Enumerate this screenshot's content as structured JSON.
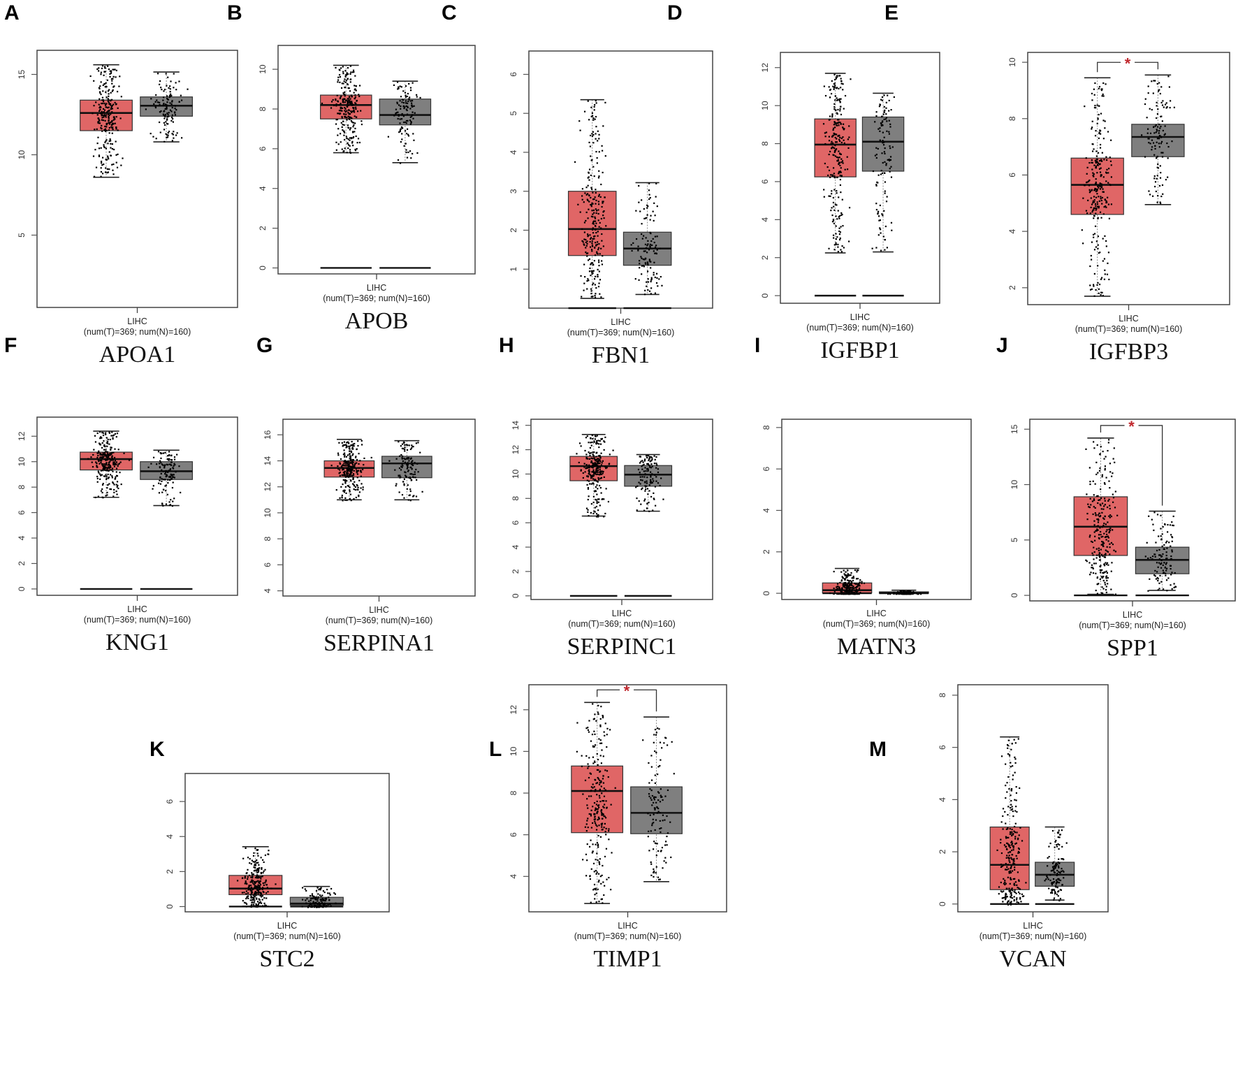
{
  "figure": {
    "panel_letters": [
      "A",
      "B",
      "C",
      "D",
      "E",
      "F",
      "G",
      "H",
      "I",
      "J",
      "K",
      "L",
      "M"
    ]
  },
  "chart_data": [
    {
      "panel": "A",
      "type": "box",
      "title": "APOA1",
      "xlabel": "LIHC",
      "subxlabel": "(num(T)=369; num(N)=160)",
      "yticks": [
        5,
        10,
        15
      ],
      "ylim": [
        0.5,
        16.5
      ],
      "series": [
        {
          "name": "Tumor",
          "color": "#E06666",
          "q1": 11.5,
          "median": 12.6,
          "q3": 13.4,
          "whisker_low": 8.6,
          "whisker_high": 15.6,
          "zero_line": false
        },
        {
          "name": "Normal",
          "color": "#7F7F7F",
          "q1": 12.4,
          "median": 13.05,
          "q3": 13.6,
          "whisker_low": 10.8,
          "whisker_high": 15.15,
          "zero_line": false
        }
      ],
      "significant": false
    },
    {
      "panel": "B",
      "type": "box",
      "title": "APOB",
      "xlabel": "LIHC",
      "subxlabel": "(num(T)=369; num(N)=160)",
      "yticks": [
        0,
        2,
        4,
        6,
        8,
        10
      ],
      "ylim": [
        -0.3,
        11.2
      ],
      "series": [
        {
          "name": "Tumor",
          "color": "#E06666",
          "q1": 7.5,
          "median": 8.2,
          "q3": 8.7,
          "whisker_low": 5.8,
          "whisker_high": 10.2,
          "zero_line": true
        },
        {
          "name": "Normal",
          "color": "#7F7F7F",
          "q1": 7.2,
          "median": 7.7,
          "q3": 8.5,
          "whisker_low": 5.3,
          "whisker_high": 9.4,
          "zero_line": true
        }
      ],
      "significant": false
    },
    {
      "panel": "C",
      "type": "box",
      "title": "FBN1",
      "xlabel": "LIHC",
      "subxlabel": "(num(T)=369; num(N)=160)",
      "yticks": [
        1,
        2,
        3,
        4,
        5,
        6
      ],
      "ylim": [
        0,
        6.6
      ],
      "series": [
        {
          "name": "Tumor",
          "color": "#E06666",
          "q1": 1.35,
          "median": 2.03,
          "q3": 3.0,
          "whisker_low": 0.25,
          "whisker_high": 5.35,
          "zero_line": true
        },
        {
          "name": "Normal",
          "color": "#7F7F7F",
          "q1": 1.1,
          "median": 1.53,
          "q3": 1.95,
          "whisker_low": 0.35,
          "whisker_high": 3.22,
          "zero_line": true
        }
      ],
      "significant": false
    },
    {
      "panel": "D",
      "type": "box",
      "title": "IGFBP1",
      "xlabel": "LIHC",
      "subxlabel": "(num(T)=369; num(N)=160)",
      "yticks": [
        0,
        2,
        4,
        6,
        8,
        10,
        12
      ],
      "ylim": [
        -0.4,
        12.8
      ],
      "series": [
        {
          "name": "Tumor",
          "color": "#E06666",
          "q1": 6.25,
          "median": 7.95,
          "q3": 9.3,
          "whisker_low": 2.25,
          "whisker_high": 11.7,
          "zero_line": true
        },
        {
          "name": "Normal",
          "color": "#7F7F7F",
          "q1": 6.55,
          "median": 8.1,
          "q3": 9.4,
          "whisker_low": 2.3,
          "whisker_high": 10.65,
          "zero_line": true
        }
      ],
      "significant": false
    },
    {
      "panel": "E",
      "type": "box",
      "title": "IGFBP3",
      "xlabel": "LIHC",
      "subxlabel": "(num(T)=369; num(N)=160)",
      "yticks": [
        2,
        4,
        6,
        8,
        10
      ],
      "ylim": [
        1.4,
        10.35
      ],
      "series": [
        {
          "name": "Tumor",
          "color": "#E06666",
          "q1": 4.6,
          "median": 5.65,
          "q3": 6.6,
          "whisker_low": 1.7,
          "whisker_high": 9.45,
          "zero_line": false
        },
        {
          "name": "Normal",
          "color": "#7F7F7F",
          "q1": 6.65,
          "median": 7.35,
          "q3": 7.8,
          "whisker_low": 4.95,
          "whisker_high": 9.55,
          "zero_line": false
        }
      ],
      "significant": true,
      "sig_label": "*"
    },
    {
      "panel": "F",
      "type": "box",
      "title": "KNG1",
      "xlabel": "LIHC",
      "subxlabel": "(num(T)=369; num(N)=160)",
      "yticks": [
        0,
        2,
        4,
        6,
        8,
        10,
        12
      ],
      "ylim": [
        -0.5,
        13.5
      ],
      "series": [
        {
          "name": "Tumor",
          "color": "#E06666",
          "q1": 9.35,
          "median": 10.2,
          "q3": 10.75,
          "whisker_low": 7.2,
          "whisker_high": 12.4,
          "zero_line": true
        },
        {
          "name": "Normal",
          "color": "#7F7F7F",
          "q1": 8.6,
          "median": 9.25,
          "q3": 10.0,
          "whisker_low": 6.55,
          "whisker_high": 10.9,
          "zero_line": true
        }
      ],
      "significant": false
    },
    {
      "panel": "G",
      "type": "box",
      "title": "SERPINA1",
      "xlabel": "LIHC",
      "subxlabel": "(num(T)=369; num(N)=160)",
      "yticks": [
        4,
        6,
        8,
        10,
        12,
        14,
        16
      ],
      "ylim": [
        3.6,
        17.2
      ],
      "series": [
        {
          "name": "Tumor",
          "color": "#E06666",
          "q1": 12.75,
          "median": 13.45,
          "q3": 14.0,
          "whisker_low": 11.0,
          "whisker_high": 15.65,
          "zero_line": false
        },
        {
          "name": "Normal",
          "color": "#7F7F7F",
          "q1": 12.7,
          "median": 13.8,
          "q3": 14.35,
          "whisker_low": 11.0,
          "whisker_high": 15.55,
          "zero_line": false
        }
      ],
      "significant": false
    },
    {
      "panel": "H",
      "type": "box",
      "title": "SERPINC1",
      "xlabel": "LIHC",
      "subxlabel": "(num(T)=369; num(N)=160)",
      "yticks": [
        0,
        2,
        4,
        6,
        8,
        10,
        12,
        14
      ],
      "ylim": [
        -0.3,
        14.5
      ],
      "series": [
        {
          "name": "Tumor",
          "color": "#E06666",
          "q1": 9.45,
          "median": 10.65,
          "q3": 11.45,
          "whisker_low": 6.55,
          "whisker_high": 13.25,
          "zero_line": true
        },
        {
          "name": "Normal",
          "color": "#7F7F7F",
          "q1": 9.0,
          "median": 9.95,
          "q3": 10.7,
          "whisker_low": 6.95,
          "whisker_high": 11.6,
          "zero_line": true
        }
      ],
      "significant": false
    },
    {
      "panel": "I",
      "type": "box",
      "title": "MATN3",
      "xlabel": "LIHC",
      "subxlabel": "(num(T)=369; num(N)=160)",
      "yticks": [
        0,
        2,
        4,
        6,
        8
      ],
      "ylim": [
        -0.3,
        8.4
      ],
      "series": [
        {
          "name": "Tumor",
          "color": "#E06666",
          "q1": 0.02,
          "median": 0.15,
          "q3": 0.5,
          "whisker_low": 0.0,
          "whisker_high": 1.2,
          "zero_line": true
        },
        {
          "name": "Normal",
          "color": "#7F7F7F",
          "q1": 0.0,
          "median": 0.02,
          "q3": 0.07,
          "whisker_low": 0.0,
          "whisker_high": 0.15,
          "zero_line": true
        }
      ],
      "significant": false
    },
    {
      "panel": "J",
      "type": "box",
      "title": "SPP1",
      "xlabel": "LIHC",
      "subxlabel": "(num(T)=369; num(N)=160)",
      "yticks": [
        0,
        5,
        10,
        15
      ],
      "ylim": [
        -0.5,
        15.9
      ],
      "series": [
        {
          "name": "Tumor",
          "color": "#E06666",
          "q1": 3.6,
          "median": 6.2,
          "q3": 8.9,
          "whisker_low": 0.1,
          "whisker_high": 14.2,
          "zero_line": true
        },
        {
          "name": "Normal",
          "color": "#7F7F7F",
          "q1": 1.95,
          "median": 3.2,
          "q3": 4.35,
          "whisker_low": 0.45,
          "whisker_high": 7.6,
          "zero_line": true
        }
      ],
      "significant": true,
      "sig_label": "*"
    },
    {
      "panel": "K",
      "type": "box",
      "title": "STC2",
      "xlabel": "LIHC",
      "subxlabel": "(num(T)=369; num(N)=160)",
      "yticks": [
        0,
        2,
        4,
        6
      ],
      "ylim": [
        -0.3,
        7.6
      ],
      "series": [
        {
          "name": "Tumor",
          "color": "#E06666",
          "q1": 0.68,
          "median": 1.03,
          "q3": 1.78,
          "whisker_low": 0.02,
          "whisker_high": 3.42,
          "zero_line": true
        },
        {
          "name": "Normal",
          "color": "#7F7F7F",
          "q1": 0.08,
          "median": 0.17,
          "q3": 0.53,
          "whisker_low": 0.0,
          "whisker_high": 1.15,
          "zero_line": true
        }
      ],
      "significant": false
    },
    {
      "panel": "L",
      "type": "box",
      "title": "TIMP1",
      "xlabel": "LIHC",
      "subxlabel": "(num(T)=369; num(N)=160)",
      "yticks": [
        4,
        6,
        8,
        10,
        12
      ],
      "ylim": [
        2.3,
        13.2
      ],
      "series": [
        {
          "name": "Tumor",
          "color": "#E06666",
          "q1": 6.1,
          "median": 8.1,
          "q3": 9.3,
          "whisker_low": 2.7,
          "whisker_high": 12.35,
          "zero_line": false
        },
        {
          "name": "Normal",
          "color": "#7F7F7F",
          "q1": 6.05,
          "median": 7.05,
          "q3": 8.3,
          "whisker_low": 3.75,
          "whisker_high": 11.65,
          "zero_line": false
        }
      ],
      "significant": true,
      "sig_label": "*"
    },
    {
      "panel": "M",
      "type": "box",
      "title": "VCAN",
      "xlabel": "LIHC",
      "subxlabel": "(num(T)=369; num(N)=160)",
      "yticks": [
        0,
        2,
        4,
        6,
        8
      ],
      "ylim": [
        -0.3,
        8.4
      ],
      "series": [
        {
          "name": "Tumor",
          "color": "#E06666",
          "q1": 0.55,
          "median": 1.5,
          "q3": 2.95,
          "whisker_low": 0.0,
          "whisker_high": 6.4,
          "zero_line": true
        },
        {
          "name": "Normal",
          "color": "#7F7F7F",
          "q1": 0.68,
          "median": 1.12,
          "q3": 1.6,
          "whisker_low": 0.15,
          "whisker_high": 2.95,
          "zero_line": true
        }
      ],
      "significant": false
    }
  ]
}
